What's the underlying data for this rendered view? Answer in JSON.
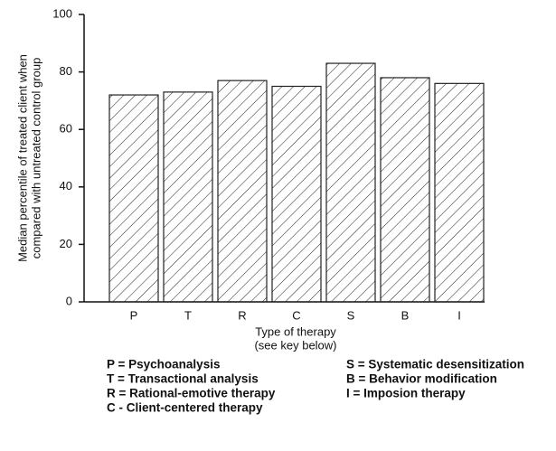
{
  "chart_data": {
    "type": "bar",
    "ylabel": [
      "Median percentile of treated client when",
      "compared with untreated control group"
    ],
    "xlabel": [
      "Type of therapy",
      "(see key below)"
    ],
    "categories": [
      "P",
      "T",
      "R",
      "C",
      "S",
      "B",
      "I"
    ],
    "values": [
      72,
      73,
      77,
      75,
      83,
      78,
      76
    ],
    "color": "#222",
    "hatch": true,
    "ylim": [
      0,
      100
    ],
    "yticks": [
      0,
      20,
      40,
      60,
      80,
      100
    ],
    "grid": false,
    "key": [
      [
        "P = Psychoanalysis",
        "T = Transactional analysis",
        "R = Rational-emotive therapy",
        "C - Client-centered therapy"
      ],
      [
        "S = Systematic desensitization",
        "B = Behavior modification",
        "I = Imposion therapy"
      ]
    ]
  }
}
